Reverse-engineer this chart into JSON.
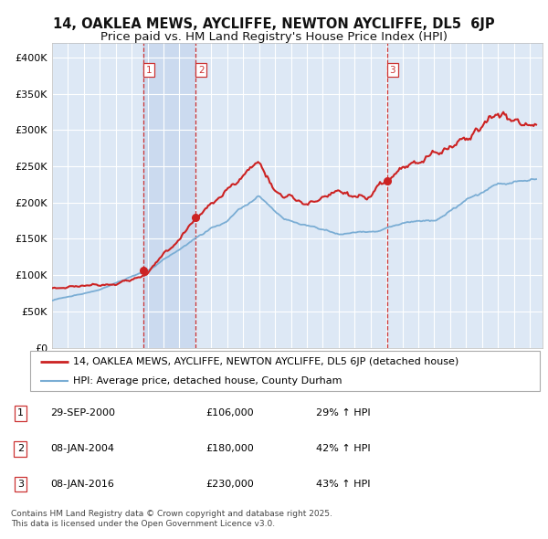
{
  "title": "14, OAKLEA MEWS, AYCLIFFE, NEWTON AYCLIFFE, DL5  6JP",
  "subtitle": "Price paid vs. HM Land Registry's House Price Index (HPI)",
  "ylim": [
    0,
    420000
  ],
  "yticks": [
    0,
    50000,
    100000,
    150000,
    200000,
    250000,
    300000,
    350000,
    400000
  ],
  "ytick_labels": [
    "£0",
    "£50K",
    "£100K",
    "£150K",
    "£200K",
    "£250K",
    "£300K",
    "£350K",
    "£400K"
  ],
  "background_color": "#ffffff",
  "plot_bg_color": "#dde8f5",
  "grid_color": "#ffffff",
  "hpi_color": "#7aadd4",
  "price_color": "#cc2222",
  "sale_marker_color": "#cc2222",
  "vline_color": "#cc3333",
  "shade_color": "#c8d8ef",
  "legend_price_label": "14, OAKLEA MEWS, AYCLIFFE, NEWTON AYCLIFFE, DL5 6JP (detached house)",
  "legend_hpi_label": "HPI: Average price, detached house, County Durham",
  "sales": [
    {
      "num": 1,
      "date_val": 2000.75,
      "price": 106000,
      "pct": "29%",
      "date_str": "29-SEP-2000"
    },
    {
      "num": 2,
      "date_val": 2004.03,
      "price": 180000,
      "pct": "42%",
      "date_str": "08-JAN-2004"
    },
    {
      "num": 3,
      "date_val": 2016.03,
      "price": 230000,
      "pct": "43%",
      "date_str": "08-JAN-2016"
    }
  ],
  "footer": "Contains HM Land Registry data © Crown copyright and database right 2025.\nThis data is licensed under the Open Government Licence v3.0.",
  "title_fontsize": 10.5,
  "subtitle_fontsize": 9.5,
  "tick_fontsize": 8,
  "legend_fontsize": 8,
  "table_fontsize": 8,
  "footer_fontsize": 6.5
}
